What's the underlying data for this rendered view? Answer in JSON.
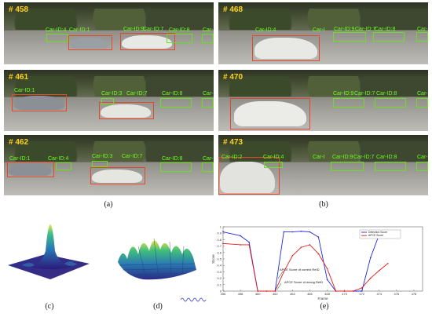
{
  "captions": {
    "a": "(a)",
    "b": "(b)",
    "c": "(c)",
    "d": "(d)",
    "e": "(e)"
  },
  "frames": [
    {
      "number": "# 458",
      "labels": [
        "Car-ID:4",
        "Car-ID:1",
        "Car-ID:9",
        "Car-ID:7",
        "Car-ID:8",
        "Car-I"
      ]
    },
    {
      "number": "# 461",
      "labels": [
        "Car-ID:1",
        "Car-ID:3",
        "Car-ID:7",
        "Car-ID:8",
        "Car-I"
      ]
    },
    {
      "number": "# 462",
      "labels": [
        "Car-ID:1",
        "Car-ID:4",
        "Car-ID:3",
        "Car-ID:7",
        "Car-ID:8",
        "Car-I"
      ]
    },
    {
      "number": "# 468",
      "labels": [
        "Car-ID:4",
        "Car-I",
        "Car-ID:9",
        "Car-ID:7",
        "Car-ID:8",
        "Car-I"
      ]
    },
    {
      "number": "# 470",
      "labels": [
        "Car-ID:9",
        "Car-ID:7",
        "Car-ID:8",
        "Car-I"
      ]
    },
    {
      "number": "# 473",
      "labels": [
        "Car-ID:2",
        "Car-ID:4",
        "Car-I",
        "Car-ID:9",
        "Car-ID:7",
        "Car-ID:8",
        "Car-I"
      ]
    }
  ],
  "chart_data": {
    "type": "line",
    "xlabel": "Frame",
    "ylabel": "Score",
    "xlim": [
      456,
      479
    ],
    "ylim": [
      0,
      1
    ],
    "xticks": [
      "456",
      "458",
      "460",
      "462",
      "464",
      "466",
      "468",
      "470",
      "472",
      "474",
      "476",
      "478"
    ],
    "yticks": [
      "0",
      "0.1",
      "0.2",
      "0.3",
      "0.4",
      "0.5",
      "0.6",
      "0.7",
      "0.8",
      "0.9",
      "1"
    ],
    "legend_position": "top-right",
    "series": [
      {
        "name": "Detection Score",
        "color": "#1f2bd9",
        "x": [
          456,
          458,
          459,
          460,
          461,
          462,
          463,
          464,
          465,
          466,
          467,
          468,
          469,
          470,
          471,
          472,
          473,
          474,
          475
        ],
        "y": [
          0.92,
          0.86,
          0.76,
          0.0,
          0.0,
          0.0,
          0.92,
          0.92,
          0.93,
          0.92,
          0.84,
          0.18,
          0.0,
          0.0,
          0.0,
          0.0,
          0.52,
          0.88,
          0.92
        ]
      },
      {
        "name": "APCE Score",
        "color": "#e01b1b",
        "x": [
          456,
          458,
          459,
          460,
          461,
          462,
          463,
          464,
          465,
          466,
          467,
          468,
          469,
          470,
          471,
          472,
          473,
          474,
          475
        ],
        "y": [
          0.74,
          0.72,
          0.72,
          0.0,
          0.0,
          0.0,
          0.3,
          0.55,
          0.68,
          0.72,
          0.58,
          0.35,
          0.0,
          0.0,
          0.0,
          0.05,
          0.2,
          0.32,
          0.43
        ]
      }
    ],
    "annotations": [
      "APCE Score of correct ReID",
      "APCE Score of wrong ReID"
    ]
  }
}
